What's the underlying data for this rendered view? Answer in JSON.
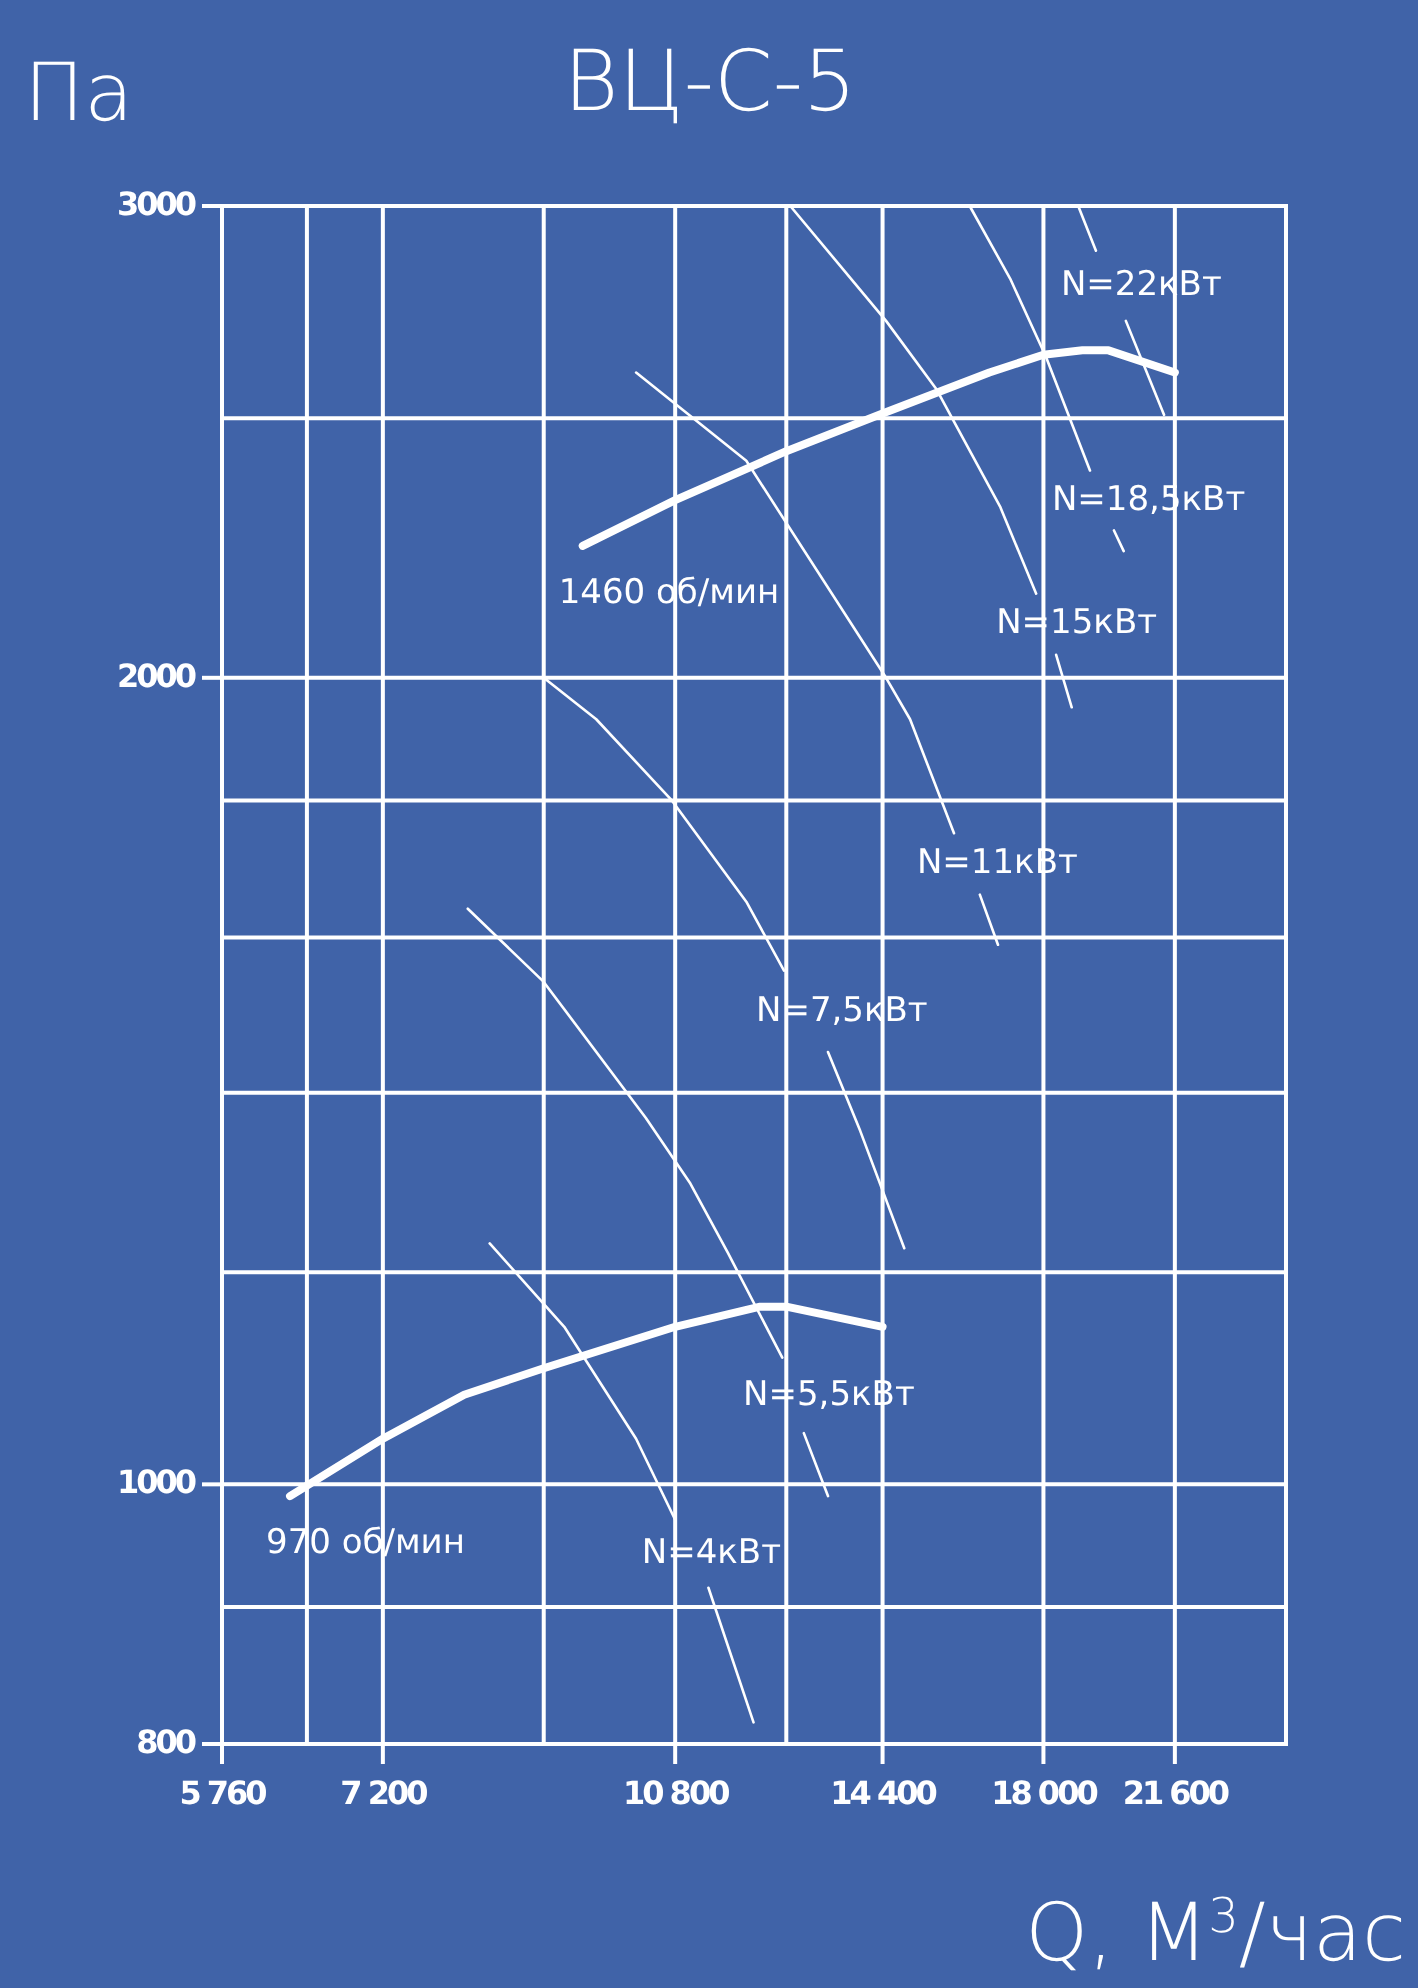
{
  "chart_data": {
    "type": "line",
    "title": "ВЦ-С-5",
    "ylabel": "Па",
    "xlabel": "Q, М$^{3}$/час",
    "log": "xy",
    "grid": true,
    "xlim": [
      5760,
      25200
    ],
    "ylim": [
      800,
      3000
    ],
    "xticks": [
      {
        "value": 5760,
        "label": "5 760"
      },
      {
        "value": 6480,
        "label": null
      },
      {
        "value": 7200,
        "label": "7 200"
      },
      {
        "value": 9000,
        "label": null
      },
      {
        "value": 10800,
        "label": "10 800"
      },
      {
        "value": 12600,
        "label": null
      },
      {
        "value": 14400,
        "label": "14 400"
      },
      {
        "value": 18000,
        "label": "18 000"
      },
      {
        "value": 21600,
        "label": "21 600"
      }
    ],
    "yticks": [
      800,
      {
        "value": 900,
        "label": null
      },
      1000,
      {
        "value": 1200,
        "label": null
      },
      {
        "value": 1400,
        "label": null
      },
      {
        "value": 1600,
        "label": null
      },
      {
        "value": 1800,
        "label": null
      },
      2000,
      {
        "value": 2500,
        "label": null
      },
      3000
    ],
    "series": [
      {
        "name": "1460 об/мин",
        "color": "#ffffff",
        "x": [
          9500,
          10800,
          12600,
          14400,
          16700,
          18000,
          19000,
          19700,
          21600
        ],
        "values": [
          2240,
          2330,
          2430,
          2510,
          2600,
          2640,
          2650,
          2650,
          2600
        ]
      },
      {
        "name": "970 об/мин",
        "color": "#ffffff",
        "x": [
          6330,
          7200,
          8060,
          9000,
          10800,
          12150,
          12600,
          14400
        ],
        "values": [
          990,
          1040,
          1080,
          1105,
          1145,
          1165,
          1165,
          1145
        ]
      },
      {
        "name": "N=22кВт",
        "color": "#ffffff",
        "x": [
          18890,
          19360,
          19750,
          20180,
          21280
        ],
        "values": [
          3000,
          2887,
          null,
          2718,
          2507
        ]
      },
      {
        "name": "N=18,5кВт",
        "color": "#ffffff",
        "x": [
          16250,
          17190,
          18060,
          19200,
          19500,
          19850,
          20120
        ],
        "values": [
          3000,
          2818,
          2636,
          2390,
          null,
          2270,
          2230
        ]
      },
      {
        "name": "N=15кВт",
        "color": "#ffffff",
        "x": [
          12670,
          14470,
          15510,
          16950,
          17820,
          18100,
          18320,
          18720
        ],
        "values": [
          3000,
          2718,
          2564,
          2317,
          2150,
          null,
          2040,
          1950
        ]
      },
      {
        "name": "N=11кВт",
        "color": "#ffffff",
        "x": [
          10230,
          11920,
          14470,
          14960,
          15900,
          16200,
          16480,
          16900
        ],
        "values": [
          2600,
          2410,
          2000,
          1930,
          1750,
          null,
          1660,
          1590
        ]
      },
      {
        "name": "N=7,5кВт",
        "color": "#ffffff",
        "x": [
          9000,
          9680,
          10750,
          11920,
          12560,
          12950,
          13350,
          13960,
          14840
        ],
        "values": [
          2000,
          1930,
          1800,
          1650,
          1555,
          null,
          1450,
          1355,
          1225
        ]
      },
      {
        "name": "N=5,5кВт",
        "color": "#ffffff",
        "x": [
          8100,
          9000,
          10370,
          11030,
          11620,
          12530,
          12700,
          12910,
          13350
        ],
        "values": [
          1640,
          1540,
          1370,
          1295,
          1220,
          1115,
          null,
          1045,
          990
        ]
      },
      {
        "name": "N=4кВт",
        "color": "#ffffff",
        "x": [
          8350,
          9260,
          10230,
          10800,
          11050,
          11310,
          12040
        ],
        "values": [
          1230,
          1145,
          1040,
          970,
          null,
          915,
          815
        ]
      }
    ]
  }
}
